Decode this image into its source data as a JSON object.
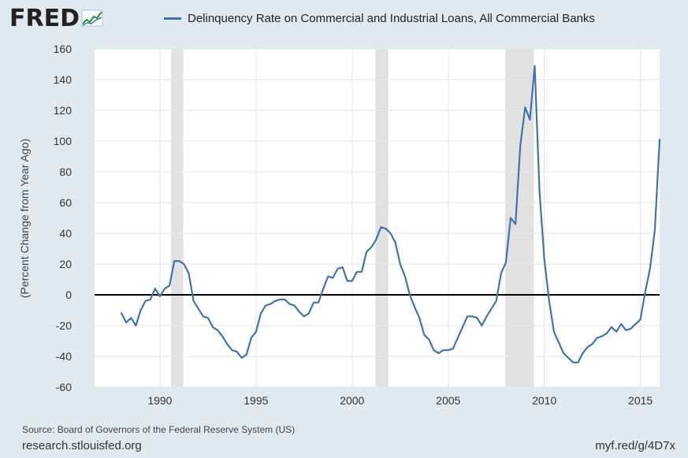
{
  "brand": {
    "logo_text": "FRED",
    "logo_mark": "chart-line-icon"
  },
  "footer": {
    "source": "Source: Board of Governors of the Federal Reserve System (US)",
    "site": "research.stlouisfed.org",
    "shortlink": "myf.red/g/4D7x"
  },
  "colors": {
    "series": "#4572a7",
    "background": "#e1e9f0",
    "plot_bg": "#ffffff",
    "recession": "#e1e1e1",
    "zero_line": "#000000"
  },
  "chart_data": {
    "type": "line",
    "ylabel": "(Percent Change from Year Ago)",
    "xlabel": "",
    "xlim": [
      1986.6,
      2016.0
    ],
    "ylim": [
      -60,
      160
    ],
    "yticks": [
      -60,
      -40,
      -20,
      0,
      20,
      40,
      60,
      80,
      100,
      120,
      140,
      160
    ],
    "xticks": [
      1990,
      1995,
      2000,
      2005,
      2010,
      2015
    ],
    "grid": true,
    "legend_position": "top",
    "recessions": [
      [
        1990.58,
        1991.21
      ],
      [
        2001.21,
        2001.88
      ],
      [
        2007.96,
        2009.46
      ]
    ],
    "series": [
      {
        "name": "Delinquency Rate on Commercial and Industrial Loans, All Commercial Banks",
        "x": [
          1988.0,
          1988.25,
          1988.5,
          1988.75,
          1989.0,
          1989.25,
          1989.5,
          1989.75,
          1990.0,
          1990.25,
          1990.5,
          1990.75,
          1991.0,
          1991.25,
          1991.5,
          1991.75,
          1992.0,
          1992.25,
          1992.5,
          1992.75,
          1993.0,
          1993.25,
          1993.5,
          1993.75,
          1994.0,
          1994.25,
          1994.5,
          1994.75,
          1995.0,
          1995.25,
          1995.5,
          1995.75,
          1996.0,
          1996.25,
          1996.5,
          1996.75,
          1997.0,
          1997.25,
          1997.5,
          1997.75,
          1998.0,
          1998.25,
          1998.5,
          1998.75,
          1999.0,
          1999.25,
          1999.5,
          1999.75,
          2000.0,
          2000.25,
          2000.5,
          2000.75,
          2001.0,
          2001.25,
          2001.5,
          2001.75,
          2002.0,
          2002.25,
          2002.5,
          2002.75,
          2003.0,
          2003.25,
          2003.5,
          2003.75,
          2004.0,
          2004.25,
          2004.5,
          2004.75,
          2005.0,
          2005.25,
          2005.5,
          2005.75,
          2006.0,
          2006.25,
          2006.5,
          2006.75,
          2007.0,
          2007.25,
          2007.5,
          2007.75,
          2008.0,
          2008.25,
          2008.5,
          2008.75,
          2009.0,
          2009.25,
          2009.5,
          2009.75,
          2010.0,
          2010.25,
          2010.5,
          2010.75,
          2011.0,
          2011.25,
          2011.5,
          2011.75,
          2012.0,
          2012.25,
          2012.5,
          2012.75,
          2013.0,
          2013.25,
          2013.5,
          2013.75,
          2014.0,
          2014.25,
          2014.5,
          2014.75,
          2015.0,
          2015.25,
          2015.5,
          2015.75,
          2016.0
        ],
        "y": [
          -12,
          -18,
          -15,
          -20,
          -10,
          -4,
          -3,
          4,
          -1,
          4,
          6,
          22,
          22,
          20,
          14,
          -4,
          -9,
          -14,
          -15,
          -21,
          -23,
          -27,
          -32,
          -36,
          -37,
          -41,
          -39,
          -28,
          -24,
          -12,
          -7,
          -6,
          -4,
          -3,
          -3,
          -6,
          -7,
          -11,
          -14,
          -12,
          -5,
          -5,
          4,
          12,
          11,
          17,
          18,
          9,
          9,
          15,
          15,
          28,
          31,
          36,
          44,
          43,
          40,
          34,
          20,
          12,
          0,
          -8,
          -15,
          -26,
          -29,
          -36,
          -38,
          -36,
          -36,
          -35,
          -28,
          -21,
          -14,
          -14,
          -15,
          -20,
          -14,
          -9,
          -4,
          14,
          21,
          50,
          46,
          97,
          122,
          114,
          149,
          67,
          23,
          -4,
          -24,
          -31,
          -38,
          -41,
          -44,
          -44,
          -38,
          -34,
          -32,
          -28,
          -27,
          -25,
          -21,
          -24,
          -19,
          -23,
          -22,
          -19,
          -16,
          2,
          17,
          42,
          101
        ]
      }
    ]
  }
}
